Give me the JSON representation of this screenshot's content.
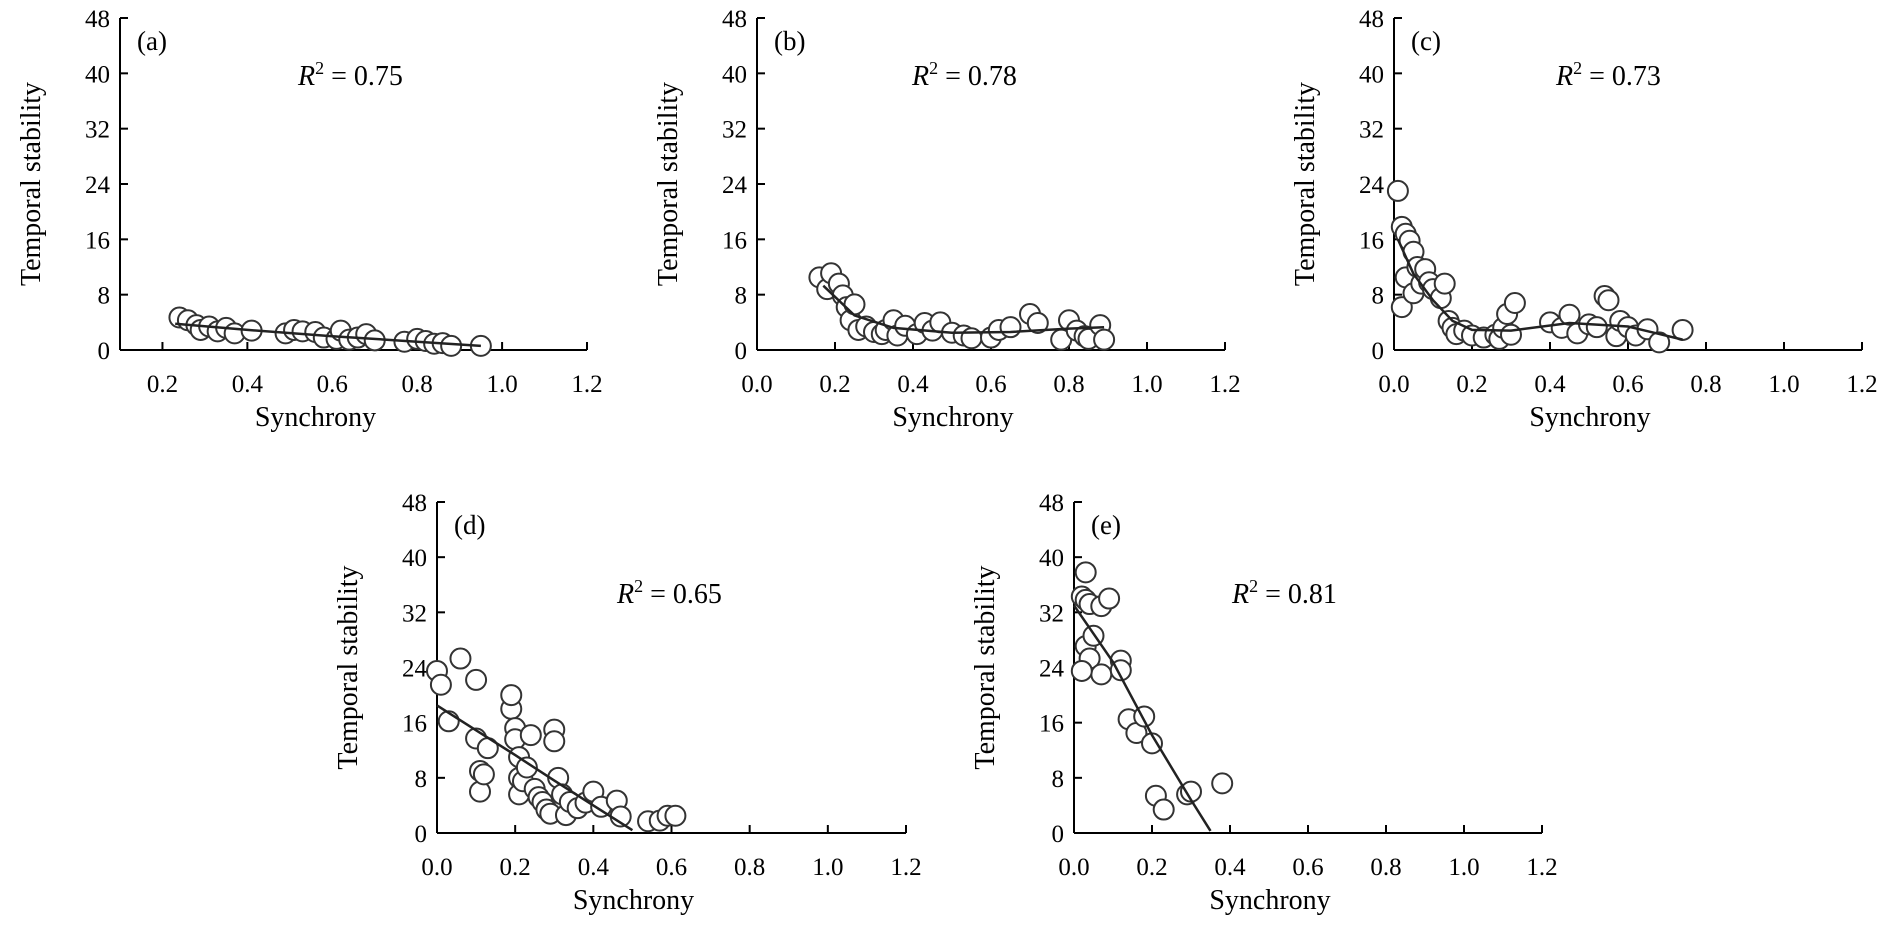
{
  "chart_data": [
    {
      "panel": "(a)",
      "type": "scatter",
      "xlabel": "Synchrony",
      "ylabel": "Temporal stability",
      "xlim": [
        0.1,
        1.2
      ],
      "ylim": [
        0,
        48
      ],
      "xticks": [
        "0.2",
        "0.4",
        "0.6",
        "0.8",
        "1.0",
        "1.2"
      ],
      "yticks": [
        "0",
        "8",
        "16",
        "24",
        "32",
        "40",
        "48"
      ],
      "annotation_r": "R",
      "annotation_sup": "2",
      "annotation_val": " = 0.75",
      "points": [
        [
          0.24,
          4.7
        ],
        [
          0.26,
          4.3
        ],
        [
          0.28,
          3.6
        ],
        [
          0.29,
          2.9
        ],
        [
          0.31,
          3.4
        ],
        [
          0.33,
          2.7
        ],
        [
          0.35,
          3.2
        ],
        [
          0.37,
          2.4
        ],
        [
          0.41,
          2.8
        ],
        [
          0.49,
          2.4
        ],
        [
          0.51,
          2.9
        ],
        [
          0.53,
          2.7
        ],
        [
          0.56,
          2.6
        ],
        [
          0.58,
          1.8
        ],
        [
          0.61,
          1.6
        ],
        [
          0.62,
          2.8
        ],
        [
          0.64,
          1.5
        ],
        [
          0.66,
          1.8
        ],
        [
          0.68,
          2.3
        ],
        [
          0.7,
          1.4
        ],
        [
          0.77,
          1.2
        ],
        [
          0.8,
          1.6
        ],
        [
          0.82,
          1.3
        ],
        [
          0.84,
          0.9
        ],
        [
          0.86,
          1.0
        ],
        [
          0.88,
          0.6
        ],
        [
          0.95,
          0.6
        ]
      ],
      "fit": [
        [
          0.23,
          3.8
        ],
        [
          0.4,
          2.9
        ],
        [
          0.6,
          2.0
        ],
        [
          0.8,
          1.2
        ],
        [
          0.95,
          0.6
        ]
      ]
    },
    {
      "panel": "(b)",
      "type": "scatter",
      "xlabel": "Synchrony",
      "ylabel": "Temporal stability",
      "xlim": [
        0,
        1.2
      ],
      "ylim": [
        0,
        48
      ],
      "xticks": [
        "0.0",
        "0.2",
        "0.4",
        "0.6",
        "0.8",
        "1.0",
        "1.2"
      ],
      "yticks": [
        "0",
        "8",
        "16",
        "24",
        "32",
        "40",
        "48"
      ],
      "annotation_r": "R",
      "annotation_sup": "2",
      "annotation_val": " = 0.78",
      "points": [
        [
          0.16,
          10.5
        ],
        [
          0.18,
          8.8
        ],
        [
          0.19,
          11.1
        ],
        [
          0.21,
          9.6
        ],
        [
          0.22,
          7.9
        ],
        [
          0.23,
          6.2
        ],
        [
          0.24,
          4.3
        ],
        [
          0.25,
          6.6
        ],
        [
          0.26,
          2.9
        ],
        [
          0.28,
          3.4
        ],
        [
          0.3,
          2.6
        ],
        [
          0.32,
          2.3
        ],
        [
          0.33,
          2.9
        ],
        [
          0.35,
          4.3
        ],
        [
          0.36,
          2.1
        ],
        [
          0.38,
          3.5
        ],
        [
          0.41,
          2.3
        ],
        [
          0.43,
          3.9
        ],
        [
          0.45,
          2.8
        ],
        [
          0.47,
          4.0
        ],
        [
          0.5,
          2.5
        ],
        [
          0.53,
          2.1
        ],
        [
          0.55,
          1.7
        ],
        [
          0.6,
          1.8
        ],
        [
          0.62,
          2.9
        ],
        [
          0.65,
          3.3
        ],
        [
          0.7,
          5.2
        ],
        [
          0.72,
          3.9
        ],
        [
          0.78,
          1.5
        ],
        [
          0.8,
          4.3
        ],
        [
          0.82,
          2.8
        ],
        [
          0.84,
          2.0
        ],
        [
          0.85,
          1.6
        ],
        [
          0.88,
          3.6
        ],
        [
          0.89,
          1.5
        ]
      ],
      "fit": [
        [
          0.17,
          9.3
        ],
        [
          0.25,
          5.0
        ],
        [
          0.35,
          3.2
        ],
        [
          0.5,
          2.5
        ],
        [
          0.65,
          2.6
        ],
        [
          0.8,
          3.1
        ],
        [
          0.89,
          3.3
        ]
      ]
    },
    {
      "panel": "(c)",
      "type": "scatter",
      "xlabel": "Synchrony",
      "ylabel": "Temporal stability",
      "xlim": [
        0,
        1.2
      ],
      "ylim": [
        0,
        48
      ],
      "xticks": [
        "0.0",
        "0.2",
        "0.4",
        "0.6",
        "0.8",
        "1.0",
        "1.2"
      ],
      "yticks": [
        "0",
        "8",
        "16",
        "24",
        "32",
        "40",
        "48"
      ],
      "annotation_r": "R",
      "annotation_sup": "2",
      "annotation_val": " = 0.73",
      "points": [
        [
          0.01,
          23.0
        ],
        [
          0.02,
          17.8
        ],
        [
          0.03,
          16.8
        ],
        [
          0.04,
          15.8
        ],
        [
          0.02,
          6.2
        ],
        [
          0.03,
          10.5
        ],
        [
          0.05,
          14.2
        ],
        [
          0.06,
          12.0
        ],
        [
          0.05,
          8.2
        ],
        [
          0.07,
          9.6
        ],
        [
          0.08,
          11.7
        ],
        [
          0.09,
          9.8
        ],
        [
          0.1,
          8.8
        ],
        [
          0.12,
          7.5
        ],
        [
          0.13,
          9.6
        ],
        [
          0.14,
          4.2
        ],
        [
          0.15,
          3.2
        ],
        [
          0.16,
          2.3
        ],
        [
          0.18,
          2.8
        ],
        [
          0.2,
          2.1
        ],
        [
          0.23,
          1.8
        ],
        [
          0.26,
          2.2
        ],
        [
          0.27,
          1.6
        ],
        [
          0.28,
          3.2
        ],
        [
          0.29,
          5.2
        ],
        [
          0.31,
          6.8
        ],
        [
          0.3,
          2.2
        ],
        [
          0.4,
          4.0
        ],
        [
          0.43,
          3.2
        ],
        [
          0.45,
          5.1
        ],
        [
          0.47,
          2.4
        ],
        [
          0.5,
          3.7
        ],
        [
          0.52,
          3.3
        ],
        [
          0.54,
          7.8
        ],
        [
          0.55,
          7.2
        ],
        [
          0.57,
          2.0
        ],
        [
          0.58,
          4.2
        ],
        [
          0.6,
          3.3
        ],
        [
          0.62,
          2.1
        ],
        [
          0.65,
          3.0
        ],
        [
          0.68,
          1.1
        ],
        [
          0.74,
          2.9
        ]
      ],
      "fit": [
        [
          0.01,
          16.0
        ],
        [
          0.05,
          11.0
        ],
        [
          0.1,
          7.2
        ],
        [
          0.15,
          4.2
        ],
        [
          0.2,
          2.9
        ],
        [
          0.3,
          2.8
        ],
        [
          0.45,
          3.9
        ],
        [
          0.6,
          3.4
        ],
        [
          0.74,
          1.5
        ]
      ]
    },
    {
      "panel": "(d)",
      "type": "scatter",
      "xlabel": "Synchrony",
      "ylabel": "Temporal stability",
      "xlim": [
        0,
        1.2
      ],
      "ylim": [
        0,
        48
      ],
      "xticks": [
        "0.0",
        "0.2",
        "0.4",
        "0.6",
        "0.8",
        "1.0",
        "1.2"
      ],
      "yticks": [
        "0",
        "8",
        "16",
        "24",
        "32",
        "40",
        "48"
      ],
      "annotation_r": "R",
      "annotation_sup": "2",
      "annotation_val": " = 0.65",
      "points": [
        [
          0.0,
          23.5
        ],
        [
          0.01,
          21.5
        ],
        [
          0.03,
          16.2
        ],
        [
          0.06,
          25.3
        ],
        [
          0.1,
          22.2
        ],
        [
          0.1,
          13.7
        ],
        [
          0.11,
          9.0
        ],
        [
          0.11,
          6.0
        ],
        [
          0.12,
          8.5
        ],
        [
          0.13,
          12.3
        ],
        [
          0.19,
          18.0
        ],
        [
          0.19,
          20.0
        ],
        [
          0.2,
          15.2
        ],
        [
          0.2,
          13.6
        ],
        [
          0.21,
          11.0
        ],
        [
          0.21,
          8.0
        ],
        [
          0.21,
          5.6
        ],
        [
          0.22,
          7.5
        ],
        [
          0.23,
          9.5
        ],
        [
          0.24,
          14.2
        ],
        [
          0.25,
          6.4
        ],
        [
          0.26,
          5.2
        ],
        [
          0.27,
          4.5
        ],
        [
          0.28,
          3.4
        ],
        [
          0.29,
          2.8
        ],
        [
          0.3,
          15.0
        ],
        [
          0.3,
          13.3
        ],
        [
          0.31,
          8.0
        ],
        [
          0.32,
          5.6
        ],
        [
          0.33,
          2.6
        ],
        [
          0.34,
          4.5
        ],
        [
          0.36,
          3.6
        ],
        [
          0.38,
          4.4
        ],
        [
          0.4,
          6.0
        ],
        [
          0.42,
          3.8
        ],
        [
          0.46,
          4.7
        ],
        [
          0.47,
          2.4
        ],
        [
          0.54,
          1.7
        ],
        [
          0.57,
          1.8
        ],
        [
          0.59,
          2.5
        ],
        [
          0.61,
          2.5
        ]
      ],
      "fit": [
        [
          0.0,
          18.5
        ],
        [
          0.1,
          14.9
        ],
        [
          0.2,
          11.3
        ],
        [
          0.3,
          7.6
        ],
        [
          0.4,
          4.0
        ],
        [
          0.5,
          0.4
        ]
      ]
    },
    {
      "panel": "(e)",
      "type": "scatter",
      "xlabel": "Synchrony",
      "ylabel": "Temporal stability",
      "xlim": [
        0,
        1.2
      ],
      "ylim": [
        0,
        48
      ],
      "xticks": [
        "0.0",
        "0.2",
        "0.4",
        "0.6",
        "0.8",
        "1.0",
        "1.2"
      ],
      "yticks": [
        "0",
        "8",
        "16",
        "24",
        "32",
        "40",
        "48"
      ],
      "annotation_r": "R",
      "annotation_sup": "2",
      "annotation_val": " = 0.81",
      "points": [
        [
          0.03,
          37.8
        ],
        [
          0.02,
          34.3
        ],
        [
          0.03,
          33.8
        ],
        [
          0.04,
          33.2
        ],
        [
          0.03,
          27.1
        ],
        [
          0.04,
          25.3
        ],
        [
          0.05,
          28.6
        ],
        [
          0.07,
          23.0
        ],
        [
          0.07,
          32.9
        ],
        [
          0.09,
          34.0
        ],
        [
          0.02,
          23.5
        ],
        [
          0.12,
          25.0
        ],
        [
          0.12,
          23.6
        ],
        [
          0.14,
          16.5
        ],
        [
          0.16,
          14.5
        ],
        [
          0.18,
          16.9
        ],
        [
          0.2,
          13.0
        ],
        [
          0.21,
          5.4
        ],
        [
          0.23,
          3.4
        ],
        [
          0.29,
          5.6
        ],
        [
          0.3,
          6.0
        ],
        [
          0.38,
          7.2
        ]
      ],
      "fit": [
        [
          0.0,
          33.0
        ],
        [
          0.1,
          24.8
        ],
        [
          0.2,
          14.2
        ],
        [
          0.3,
          4.8
        ],
        [
          0.35,
          0.3
        ]
      ]
    }
  ]
}
